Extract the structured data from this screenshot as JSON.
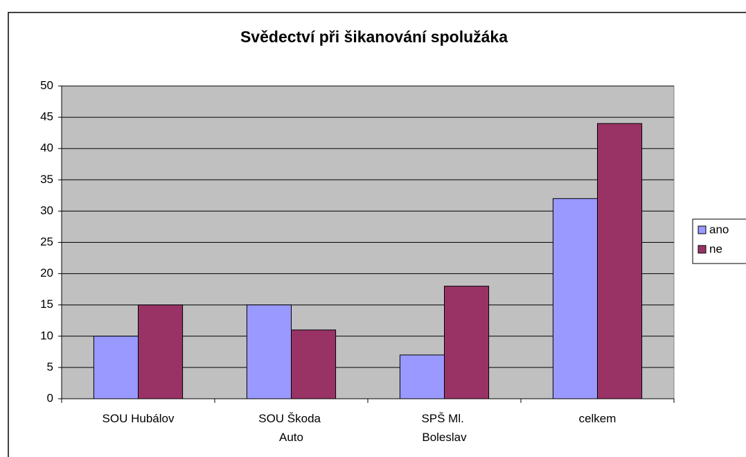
{
  "chart_data": {
    "type": "bar",
    "title": "Svědectví při šikanování spolužáka",
    "categories": [
      "SOU Hubálov",
      "SOU Škoda Auto",
      "SPŠ Ml. Boleslav",
      "celkem"
    ],
    "series": [
      {
        "name": "ano",
        "color": "#9999ff",
        "values": [
          10,
          15,
          7,
          32
        ]
      },
      {
        "name": "ne",
        "color": "#993366",
        "values": [
          15,
          11,
          18,
          44
        ]
      }
    ],
    "ylim": [
      0,
      50
    ],
    "yticks": [
      0,
      5,
      10,
      15,
      20,
      25,
      30,
      35,
      40,
      45,
      50
    ],
    "grid": true,
    "legend": "right"
  }
}
